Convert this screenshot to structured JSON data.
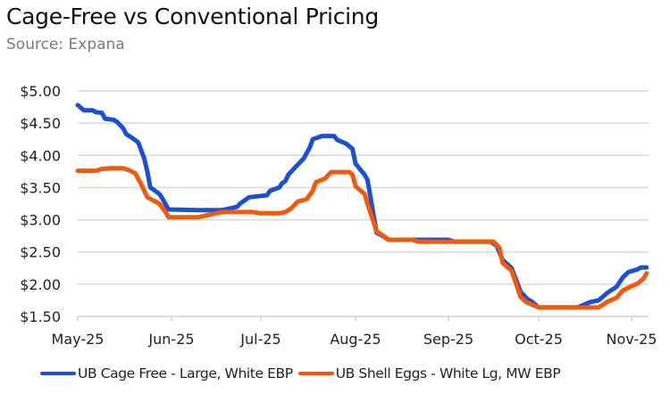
{
  "chart_data": {
    "type": "line",
    "title": "Cage-Free vs Conventional Pricing",
    "subtitle": "Source: Expana",
    "xlabel": "",
    "ylabel": "",
    "x_range": [
      "2025-05-01",
      "2025-11-06"
    ],
    "ylim": [
      1.5,
      5.0
    ],
    "y_ticks": [
      1.5,
      2.0,
      2.5,
      3.0,
      3.5,
      4.0,
      4.5,
      5.0
    ],
    "y_tick_labels": [
      "$1.50",
      "$2.00",
      "$2.50",
      "$3.00",
      "$3.50",
      "$4.00",
      "$4.50",
      "$5.00"
    ],
    "x_ticks": [
      "2025-05-01",
      "2025-06-01",
      "2025-07-01",
      "2025-08-01",
      "2025-09-01",
      "2025-10-01",
      "2025-11-01"
    ],
    "x_tick_labels": [
      "May-25",
      "Jun-25",
      "Jul-25",
      "Aug-25",
      "Sep-25",
      "Oct-25",
      "Nov-25"
    ],
    "grid": "horizontal",
    "legend_position": "bottom",
    "series": [
      {
        "name": "UB Cage Free - Large, White EBP",
        "color": "#1a4fd6",
        "points": [
          [
            "2025-05-01",
            4.78
          ],
          [
            "2025-05-03",
            4.7
          ],
          [
            "2025-05-06",
            4.7
          ],
          [
            "2025-05-07",
            4.67
          ],
          [
            "2025-05-09",
            4.66
          ],
          [
            "2025-05-10",
            4.57
          ],
          [
            "2025-05-13",
            4.55
          ],
          [
            "2025-05-14",
            4.52
          ],
          [
            "2025-05-16",
            4.42
          ],
          [
            "2025-05-17",
            4.33
          ],
          [
            "2025-05-19",
            4.27
          ],
          [
            "2025-05-21",
            4.2
          ],
          [
            "2025-05-23",
            3.95
          ],
          [
            "2025-05-24",
            3.75
          ],
          [
            "2025-05-25",
            3.5
          ],
          [
            "2025-05-26",
            3.47
          ],
          [
            "2025-05-28",
            3.4
          ],
          [
            "2025-05-29",
            3.33
          ],
          [
            "2025-05-31",
            3.16
          ],
          [
            "2025-06-10",
            3.15
          ],
          [
            "2025-06-18",
            3.15
          ],
          [
            "2025-06-20",
            3.17
          ],
          [
            "2025-06-23",
            3.2
          ],
          [
            "2025-06-24",
            3.25
          ],
          [
            "2025-06-27",
            3.35
          ],
          [
            "2025-07-01",
            3.37
          ],
          [
            "2025-07-03",
            3.38
          ],
          [
            "2025-07-04",
            3.45
          ],
          [
            "2025-07-07",
            3.5
          ],
          [
            "2025-07-08",
            3.57
          ],
          [
            "2025-07-09",
            3.6
          ],
          [
            "2025-07-10",
            3.7
          ],
          [
            "2025-07-13",
            3.85
          ],
          [
            "2025-07-15",
            3.95
          ],
          [
            "2025-07-17",
            4.12
          ],
          [
            "2025-07-18",
            4.25
          ],
          [
            "2025-07-21",
            4.3
          ],
          [
            "2025-07-25",
            4.3
          ],
          [
            "2025-07-26",
            4.24
          ],
          [
            "2025-07-29",
            4.18
          ],
          [
            "2025-07-31",
            4.1
          ],
          [
            "2025-08-01",
            3.87
          ],
          [
            "2025-08-04",
            3.7
          ],
          [
            "2025-08-05",
            3.62
          ],
          [
            "2025-08-08",
            2.8
          ],
          [
            "2025-08-10",
            2.75
          ],
          [
            "2025-08-12",
            2.69
          ],
          [
            "2025-09-01",
            2.69
          ],
          [
            "2025-09-03",
            2.66
          ],
          [
            "2025-09-15",
            2.66
          ],
          [
            "2025-09-17",
            2.6
          ],
          [
            "2025-09-19",
            2.38
          ],
          [
            "2025-09-22",
            2.25
          ],
          [
            "2025-09-25",
            1.88
          ],
          [
            "2025-09-27",
            1.78
          ],
          [
            "2025-09-29",
            1.72
          ],
          [
            "2025-10-01",
            1.64
          ],
          [
            "2025-10-14",
            1.64
          ],
          [
            "2025-10-16",
            1.68
          ],
          [
            "2025-10-18",
            1.72
          ],
          [
            "2025-10-21",
            1.75
          ],
          [
            "2025-10-24",
            1.87
          ],
          [
            "2025-10-27",
            1.96
          ],
          [
            "2025-10-29",
            2.1
          ],
          [
            "2025-10-31",
            2.19
          ],
          [
            "2025-11-03",
            2.23
          ],
          [
            "2025-11-04",
            2.26
          ],
          [
            "2025-11-06",
            2.26
          ]
        ]
      },
      {
        "name": "UB Shell Eggs - White Lg, MW EBP",
        "color": "#f05a0a",
        "points": [
          [
            "2025-05-01",
            3.76
          ],
          [
            "2025-05-07",
            3.76
          ],
          [
            "2025-05-09",
            3.79
          ],
          [
            "2025-05-12",
            3.8
          ],
          [
            "2025-05-16",
            3.8
          ],
          [
            "2025-05-18",
            3.77
          ],
          [
            "2025-05-20",
            3.72
          ],
          [
            "2025-05-22",
            3.55
          ],
          [
            "2025-05-24",
            3.35
          ],
          [
            "2025-05-26",
            3.3
          ],
          [
            "2025-05-28",
            3.25
          ],
          [
            "2025-05-30",
            3.12
          ],
          [
            "2025-05-31",
            3.04
          ],
          [
            "2025-06-10",
            3.04
          ],
          [
            "2025-06-13",
            3.07
          ],
          [
            "2025-06-15",
            3.09
          ],
          [
            "2025-06-18",
            3.12
          ],
          [
            "2025-06-28",
            3.12
          ],
          [
            "2025-07-01",
            3.1
          ],
          [
            "2025-07-07",
            3.1
          ],
          [
            "2025-07-09",
            3.12
          ],
          [
            "2025-07-11",
            3.18
          ],
          [
            "2025-07-13",
            3.28
          ],
          [
            "2025-07-16",
            3.32
          ],
          [
            "2025-07-18",
            3.45
          ],
          [
            "2025-07-19",
            3.58
          ],
          [
            "2025-07-22",
            3.64
          ],
          [
            "2025-07-24",
            3.74
          ],
          [
            "2025-07-30",
            3.74
          ],
          [
            "2025-07-31",
            3.7
          ],
          [
            "2025-08-01",
            3.52
          ],
          [
            "2025-08-04",
            3.4
          ],
          [
            "2025-08-05",
            3.25
          ],
          [
            "2025-08-08",
            2.82
          ],
          [
            "2025-08-10",
            2.76
          ],
          [
            "2025-08-12",
            2.69
          ],
          [
            "2025-08-20",
            2.69
          ],
          [
            "2025-08-22",
            2.66
          ],
          [
            "2025-09-16",
            2.66
          ],
          [
            "2025-09-18",
            2.56
          ],
          [
            "2025-09-19",
            2.33
          ],
          [
            "2025-09-22",
            2.21
          ],
          [
            "2025-09-25",
            1.8
          ],
          [
            "2025-09-27",
            1.72
          ],
          [
            "2025-10-01",
            1.64
          ],
          [
            "2025-10-21",
            1.64
          ],
          [
            "2025-10-24",
            1.73
          ],
          [
            "2025-10-27",
            1.79
          ],
          [
            "2025-10-29",
            1.9
          ],
          [
            "2025-11-01",
            1.97
          ],
          [
            "2025-11-03",
            2.01
          ],
          [
            "2025-11-05",
            2.09
          ],
          [
            "2025-11-06",
            2.17
          ]
        ]
      }
    ]
  }
}
